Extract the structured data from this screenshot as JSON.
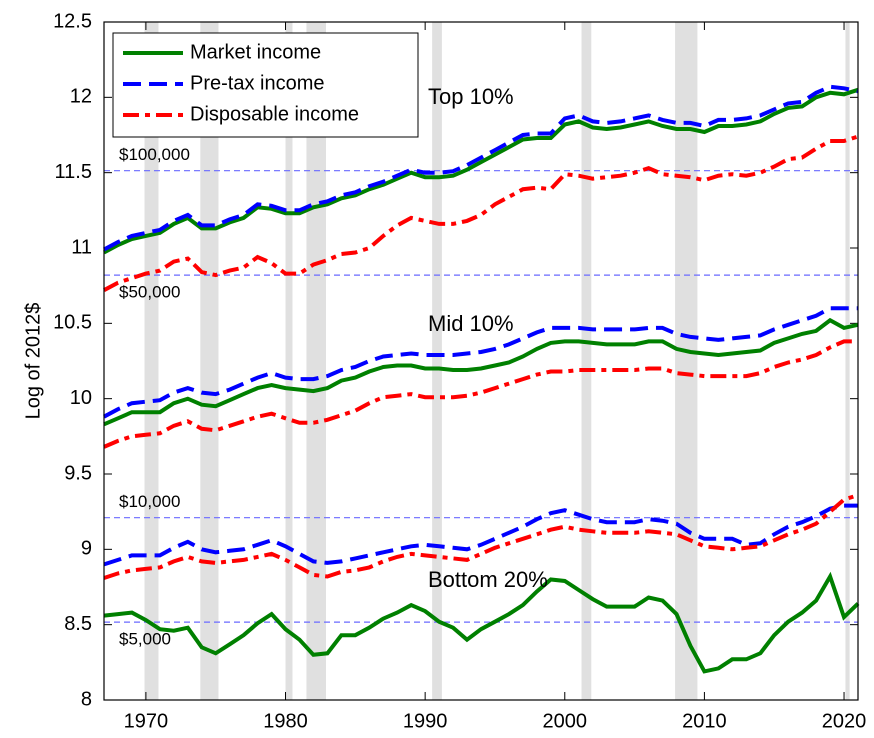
{
  "chart_data": {
    "type": "line",
    "y_label": "Log of 2012$",
    "x": [
      1967,
      1968,
      1969,
      1970,
      1971,
      1972,
      1973,
      1974,
      1975,
      1976,
      1977,
      1978,
      1979,
      1980,
      1981,
      1982,
      1983,
      1984,
      1985,
      1986,
      1987,
      1988,
      1989,
      1990,
      1991,
      1992,
      1993,
      1994,
      1995,
      1996,
      1997,
      1998,
      1999,
      2000,
      2001,
      2002,
      2003,
      2004,
      2005,
      2006,
      2007,
      2008,
      2009,
      2010,
      2011,
      2012,
      2013,
      2014,
      2015,
      2016,
      2017,
      2018,
      2019,
      2020,
      2021
    ],
    "groups": [
      "Top 10%",
      "Mid 10%",
      "Bottom 20%"
    ],
    "series": [
      {
        "name": "Market income",
        "color": "#008000",
        "line_style": "solid",
        "values": [
          [
            10.97,
            11.02,
            11.06,
            11.08,
            11.1,
            11.16,
            11.2,
            11.13,
            11.13,
            11.17,
            11.2,
            11.27,
            11.26,
            11.23,
            11.23,
            11.27,
            11.29,
            11.33,
            11.35,
            11.39,
            11.42,
            11.46,
            11.5,
            11.47,
            11.47,
            11.48,
            11.52,
            11.57,
            11.62,
            11.67,
            11.72,
            11.73,
            11.73,
            11.82,
            11.84,
            11.8,
            11.79,
            11.8,
            11.82,
            11.84,
            11.81,
            11.79,
            11.79,
            11.77,
            11.81,
            11.81,
            11.82,
            11.84,
            11.89,
            11.93,
            11.94,
            12.0,
            12.03,
            12.02,
            12.05
          ],
          [
            9.83,
            9.87,
            9.91,
            9.91,
            9.91,
            9.97,
            10.0,
            9.96,
            9.95,
            9.99,
            10.03,
            10.07,
            10.09,
            10.07,
            10.06,
            10.05,
            10.07,
            10.12,
            10.14,
            10.18,
            10.21,
            10.22,
            10.22,
            10.2,
            10.2,
            10.19,
            10.19,
            10.2,
            10.22,
            10.24,
            10.28,
            10.33,
            10.37,
            10.38,
            10.38,
            10.37,
            10.36,
            10.36,
            10.36,
            10.38,
            10.38,
            10.33,
            10.31,
            10.3,
            10.29,
            10.3,
            10.31,
            10.32,
            10.37,
            10.4,
            10.43,
            10.45,
            10.52,
            10.47,
            10.49
          ],
          [
            8.56,
            8.57,
            8.58,
            8.53,
            8.47,
            8.46,
            8.48,
            8.35,
            8.31,
            8.37,
            8.43,
            8.51,
            8.57,
            8.47,
            8.4,
            8.3,
            8.31,
            8.43,
            8.43,
            8.48,
            8.54,
            8.58,
            8.63,
            8.59,
            8.52,
            8.48,
            8.4,
            8.47,
            8.52,
            8.57,
            8.63,
            8.72,
            8.8,
            8.79,
            8.73,
            8.67,
            8.62,
            8.62,
            8.62,
            8.68,
            8.66,
            8.57,
            8.36,
            8.19,
            8.21,
            8.27,
            8.27,
            8.31,
            8.43,
            8.52,
            8.58,
            8.66,
            8.82,
            8.55,
            8.64
          ]
        ]
      },
      {
        "name": "Pre-tax income",
        "color": "#0000ff",
        "line_style": "dashed",
        "values": [
          [
            10.99,
            11.04,
            11.08,
            11.1,
            11.12,
            11.18,
            11.22,
            11.15,
            11.15,
            11.19,
            11.22,
            11.29,
            11.28,
            11.25,
            11.25,
            11.29,
            11.31,
            11.35,
            11.37,
            11.41,
            11.44,
            11.48,
            11.52,
            11.5,
            11.5,
            11.51,
            11.55,
            11.6,
            11.65,
            11.7,
            11.75,
            11.76,
            11.76,
            11.86,
            11.88,
            11.84,
            11.83,
            11.84,
            11.86,
            11.88,
            11.85,
            11.83,
            11.83,
            11.81,
            11.85,
            11.85,
            11.86,
            11.88,
            11.92,
            11.96,
            11.97,
            12.03,
            12.07,
            12.06,
            12.04
          ],
          [
            9.88,
            9.93,
            9.97,
            9.98,
            9.99,
            10.04,
            10.07,
            10.04,
            10.03,
            10.06,
            10.1,
            10.14,
            10.17,
            10.14,
            10.13,
            10.13,
            10.15,
            10.19,
            10.21,
            10.25,
            10.28,
            10.29,
            10.3,
            10.29,
            10.29,
            10.29,
            10.3,
            10.31,
            10.33,
            10.36,
            10.4,
            10.44,
            10.47,
            10.47,
            10.47,
            10.46,
            10.46,
            10.46,
            10.46,
            10.47,
            10.47,
            10.43,
            10.41,
            10.4,
            10.39,
            10.4,
            10.41,
            10.42,
            10.46,
            10.49,
            10.52,
            10.55,
            10.6,
            10.6,
            10.6
          ],
          [
            8.9,
            8.93,
            8.96,
            8.96,
            8.96,
            9.01,
            9.05,
            9.0,
            8.98,
            8.99,
            9.0,
            9.03,
            9.06,
            9.02,
            8.97,
            8.92,
            8.91,
            8.92,
            8.94,
            8.96,
            8.98,
            9.0,
            9.02,
            9.03,
            9.02,
            9.01,
            9.0,
            9.03,
            9.07,
            9.11,
            9.15,
            9.2,
            9.24,
            9.26,
            9.23,
            9.2,
            9.18,
            9.18,
            9.18,
            9.2,
            9.19,
            9.17,
            9.11,
            9.07,
            9.07,
            9.07,
            9.03,
            9.04,
            9.1,
            9.15,
            9.18,
            9.22,
            9.27,
            9.29,
            9.29
          ]
        ]
      },
      {
        "name": "Disposable income",
        "color": "#ff0000",
        "line_style": "dashdot",
        "values": [
          [
            10.72,
            10.77,
            10.8,
            10.83,
            10.85,
            10.91,
            10.93,
            10.84,
            10.82,
            10.85,
            10.87,
            10.94,
            10.9,
            10.83,
            10.83,
            10.89,
            10.92,
            10.96,
            10.97,
            11.0,
            11.08,
            11.15,
            11.2,
            11.18,
            11.16,
            11.16,
            11.18,
            11.22,
            11.29,
            11.34,
            11.39,
            11.4,
            11.39,
            11.49,
            11.48,
            11.46,
            11.47,
            11.48,
            11.5,
            11.53,
            11.49,
            11.48,
            11.47,
            11.45,
            11.48,
            11.49,
            11.48,
            11.5,
            11.54,
            11.59,
            11.6,
            11.66,
            11.71,
            11.71,
            11.74
          ],
          [
            9.68,
            9.72,
            9.75,
            9.76,
            9.77,
            9.82,
            9.85,
            9.8,
            9.79,
            9.82,
            9.85,
            9.88,
            9.9,
            9.87,
            9.84,
            9.84,
            9.86,
            9.89,
            9.92,
            9.97,
            10.01,
            10.02,
            10.03,
            10.01,
            10.01,
            10.01,
            10.02,
            10.04,
            10.07,
            10.1,
            10.13,
            10.16,
            10.18,
            10.18,
            10.19,
            10.19,
            10.19,
            10.19,
            10.19,
            10.2,
            10.2,
            10.17,
            10.16,
            10.15,
            10.15,
            10.15,
            10.15,
            10.17,
            10.21,
            10.24,
            10.26,
            10.29,
            10.34,
            10.38,
            10.38
          ],
          [
            8.81,
            8.84,
            8.86,
            8.87,
            8.88,
            8.92,
            8.95,
            8.92,
            8.91,
            8.92,
            8.93,
            8.95,
            8.97,
            8.93,
            8.88,
            8.83,
            8.82,
            8.85,
            8.86,
            8.88,
            8.92,
            8.95,
            8.97,
            8.96,
            8.95,
            8.94,
            8.93,
            8.97,
            9.01,
            9.04,
            9.07,
            9.1,
            9.13,
            9.15,
            9.13,
            9.12,
            9.11,
            9.11,
            9.11,
            9.12,
            9.11,
            9.1,
            9.06,
            9.02,
            9.01,
            9.0,
            9.01,
            9.02,
            9.06,
            9.1,
            9.13,
            9.17,
            9.25,
            9.33,
            9.36
          ]
        ]
      }
    ],
    "reference_lines": [
      {
        "value": 11.513,
        "label": "$100,000"
      },
      {
        "value": 10.82,
        "label": "$50,000"
      },
      {
        "value": 9.21,
        "label": "$10,000"
      },
      {
        "value": 8.517,
        "label": "$5,000"
      }
    ],
    "shaded_periods": [
      [
        1969.9,
        1970.9
      ],
      [
        1973.9,
        1975.2
      ],
      [
        1980.0,
        1980.5
      ],
      [
        1981.5,
        1982.9
      ],
      [
        1990.5,
        1991.2
      ],
      [
        2001.2,
        2001.9
      ],
      [
        2007.9,
        2009.5
      ],
      [
        2020.1,
        2020.4
      ]
    ],
    "xlim": [
      1967,
      2021
    ],
    "ylim": [
      8,
      12.5
    ],
    "xticks": [
      1970,
      1980,
      1990,
      2000,
      2010,
      2020
    ],
    "yticks": [
      8,
      8.5,
      9,
      9.5,
      10,
      10.5,
      11,
      11.5,
      12,
      12.5
    ],
    "grid": false,
    "legend": "upper left"
  }
}
